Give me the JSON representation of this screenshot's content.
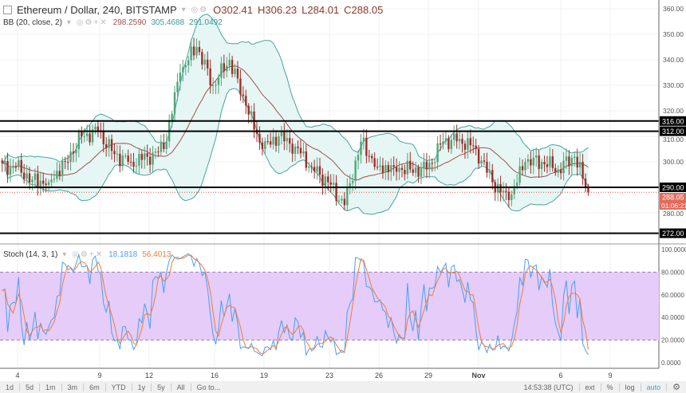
{
  "header": {
    "title": "Ethereum / Dollar, 240, BITSTAMP",
    "open": "O302.41",
    "high": "H306.23",
    "low": "L284.01",
    "close": "C288.05"
  },
  "bb": {
    "label": "BB (20, close, 2)",
    "basis": "298.2590",
    "upper": "305.4688",
    "lower": "291.0492"
  },
  "stoch": {
    "label": "Stoch (14, 3, 1)",
    "k": "18.1818",
    "d": "56.4013"
  },
  "colors": {
    "up": "#53a57a",
    "down": "#9e2e28",
    "bb_fill": "#e6f6f4",
    "bb_band": "#4aa3a0",
    "bb_basis": "#a0504c",
    "stoch_fill": "#e5ccf9",
    "k": "#4a9ff5",
    "d": "#f07c3a"
  },
  "chart_data": {
    "type": "candlestick",
    "symbol": "ETHUSD",
    "interval": "240",
    "daily_closes": [
      298,
      293,
      292,
      300,
      310,
      312,
      303,
      300,
      302,
      305,
      335,
      345,
      330,
      340,
      322,
      305,
      310,
      306,
      298,
      292,
      283,
      308,
      298,
      298,
      297,
      297,
      308,
      309,
      305,
      292,
      285,
      300,
      300,
      297,
      302,
      288.05
    ],
    "ylim": [
      268,
      363
    ],
    "price_ticks": [
      "360.00",
      "350.00",
      "340.00",
      "330.00",
      "320.00",
      "310.00",
      "300.00",
      "280.00"
    ],
    "levels": [
      {
        "value": 316,
        "label": "316.00"
      },
      {
        "value": 312,
        "label": "312.00"
      },
      {
        "value": 290,
        "label": "290.00"
      },
      {
        "value": 272,
        "label": "272.00"
      }
    ],
    "last_price": "288.05",
    "countdown": "01:06:21",
    "stoch_ticks": [
      "100.0000",
      "80.0000",
      "60.0000",
      "40.0000",
      "20.0000",
      "0.0000"
    ],
    "x_ticks": [
      "4",
      "9",
      "12",
      "16",
      "19",
      "23",
      "26",
      "29",
      "Nov",
      "6",
      "9"
    ]
  },
  "toolbar": {
    "ranges": [
      "1d",
      "5d",
      "1m",
      "3m",
      "6m",
      "YTD",
      "1y",
      "5y",
      "All",
      "Go to..."
    ],
    "time": "14:53:38 (UTC)",
    "ext": "ext",
    "pct": "%",
    "log": "log",
    "auto": "auto"
  }
}
